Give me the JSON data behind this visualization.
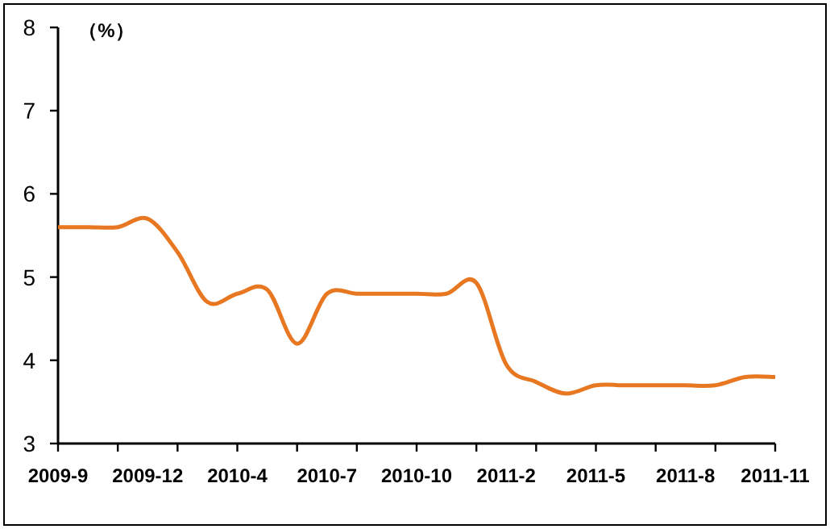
{
  "chart_data": {
    "type": "line",
    "ylabel": "（%）",
    "categories": [
      "2009-9",
      null,
      null,
      "2009-12",
      null,
      null,
      "2010-4",
      null,
      null,
      "2010-7",
      null,
      null,
      "2010-10",
      null,
      null,
      "2011-2",
      null,
      null,
      "2011-5",
      null,
      null,
      "2011-8",
      null,
      null,
      "2011-11"
    ],
    "series": [
      {
        "color": "#e87722",
        "values": [
          5.6,
          5.6,
          5.6,
          5.7,
          5.3,
          4.7,
          4.8,
          4.85,
          4.2,
          4.8,
          4.8,
          4.8,
          4.8,
          4.8,
          4.93,
          3.95,
          3.74,
          3.6,
          3.7,
          3.7,
          3.7,
          3.7,
          3.7,
          3.8,
          3.8
        ]
      }
    ],
    "ylim": [
      3,
      8
    ],
    "yticks": [
      3,
      4,
      5,
      6,
      7,
      8
    ],
    "grid": false,
    "marker": "none"
  }
}
